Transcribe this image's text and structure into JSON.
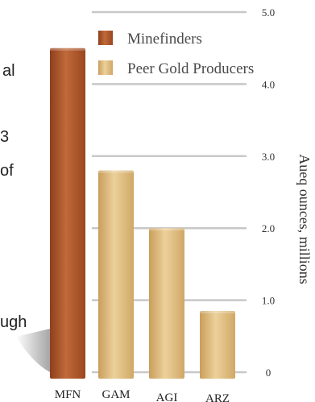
{
  "left_fragments": [
    "al",
    "3",
    "of",
    "ugh"
  ],
  "colors": {
    "minefinders": "#a8552a",
    "peer": "#d9b374",
    "gridline": "#c8c8c8"
  },
  "chart_data": {
    "type": "bar",
    "categories": [
      "MFN",
      "GAM",
      "AGI",
      "ARZ"
    ],
    "series": [
      {
        "name": "Minefinders",
        "values": [
          4.5,
          null,
          null,
          null
        ]
      },
      {
        "name": "Peer Gold Producers",
        "values": [
          null,
          2.8,
          2.0,
          0.85
        ]
      }
    ],
    "ylabel": "Aueq ounces, millions",
    "ylim": [
      0,
      5
    ],
    "yticks": [
      "0",
      "1.0",
      "2.0",
      "3.0",
      "4.0",
      "5.0"
    ],
    "legend_position": "top-right",
    "grid": true
  }
}
